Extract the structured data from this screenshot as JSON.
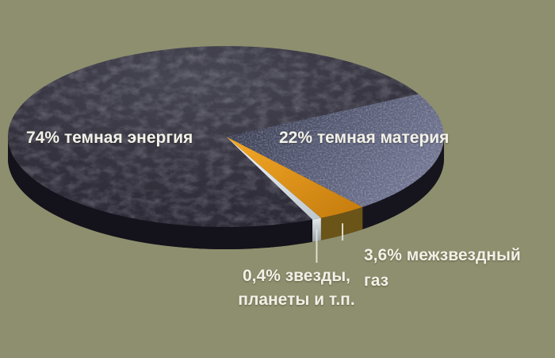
{
  "background_color": "#8E8F6E",
  "text_color": "#F2F1E8",
  "chart_data": {
    "type": "pie",
    "style": "3d-perspective",
    "unit": "%",
    "total": 100,
    "slices": [
      {
        "name": "dark-energy",
        "label": "74% темная энергия",
        "value": 74,
        "color": "#34333E",
        "side_color": "#14121A",
        "texture": "felt"
      },
      {
        "name": "dark-matter",
        "label": "22% темная материя",
        "value": 22,
        "color": "#5C6078",
        "side_color": "#16151D",
        "texture": "speckle"
      },
      {
        "name": "interstellar-gas",
        "label": "3,6% межзвездный газ",
        "value": 3.6,
        "color": "#E6991F",
        "side_color": "#6B5418",
        "texture": "none"
      },
      {
        "name": "stars-planets",
        "label": "0,4% звезды, планеты и т.п.",
        "value": 0.4,
        "color": "#EDF1F3",
        "side_color": "#C7CFD5",
        "texture": "none"
      }
    ],
    "legend_position": "none",
    "labels_on_chart": true,
    "leader_lines": true
  },
  "annotations": {
    "dark_energy": "74% темная энергия",
    "dark_matter": "22% темная материя",
    "gas_line1": "3,6% межзвездный",
    "gas_line2": "газ",
    "stars_line1": "0,4% звезды,",
    "stars_line2": "планеты и т.п."
  }
}
